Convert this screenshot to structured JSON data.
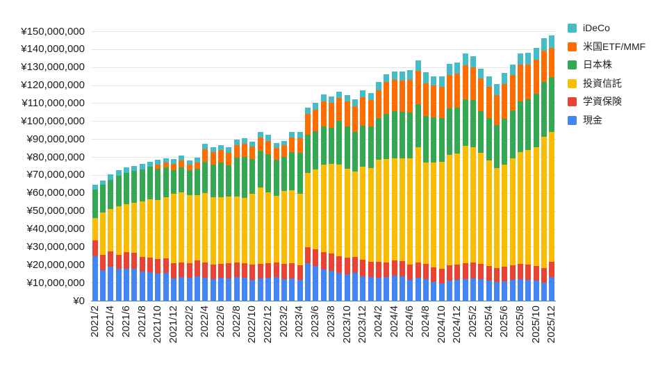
{
  "chart_data": {
    "type": "bar",
    "stacked": true,
    "title": "",
    "unit_note_millions_yen": 1000000,
    "ylim_millions": [
      0,
      150
    ],
    "grid": true,
    "y_ticks": [
      "¥0",
      "¥10,000,000",
      "¥20,000,000",
      "¥30,000,000",
      "¥40,000,000",
      "¥50,000,000",
      "¥60,000,000",
      "¥70,000,000",
      "¥80,000,000",
      "¥90,000,000",
      "¥100,000,000",
      "¥110,000,000",
      "¥120,000,000",
      "¥130,000,000",
      "¥140,000,000",
      "¥150,000,000"
    ],
    "x_tick_every": 2,
    "categories": [
      "2021/2",
      "2021/3",
      "2021/4",
      "2021/5",
      "2021/6",
      "2021/7",
      "2021/8",
      "2021/9",
      "2021/10",
      "2021/11",
      "2021/12",
      "2022/1",
      "2022/2",
      "2022/3",
      "2022/4",
      "2022/5",
      "2022/6",
      "2022/7",
      "2022/8",
      "2022/9",
      "2022/10",
      "2022/11",
      "2022/12",
      "2023/1",
      "2023/2",
      "2023/3",
      "2023/4",
      "2023/5",
      "2023/6",
      "2023/7",
      "2023/8",
      "2023/9",
      "2023/10",
      "2023/11",
      "2023/12",
      "2024/1",
      "2024/2",
      "2024/3",
      "2024/4",
      "2024/5",
      "2024/6",
      "2024/7",
      "2024/8",
      "2024/9",
      "2024/10",
      "2024/11",
      "2024/12",
      "2025/1",
      "2025/2",
      "2025/3",
      "2025/4",
      "2025/5",
      "2025/6",
      "2025/7",
      "2025/8",
      "2025/9",
      "2025/10",
      "2025/11",
      "2025/12"
    ],
    "series": [
      {
        "name": "現金",
        "color": "#4285F4",
        "values_millions": [
          24.8,
          17.2,
          19.2,
          17.9,
          17.9,
          18.1,
          16.6,
          16.2,
          15.3,
          15.5,
          12.7,
          13.2,
          13.0,
          13.6,
          13.0,
          12.2,
          13.0,
          12.7,
          13.2,
          13.0,
          11.9,
          12.7,
          13.0,
          13.2,
          12.3,
          12.7,
          11.9,
          21.0,
          19.7,
          17.5,
          16.8,
          15.5,
          14.9,
          15.8,
          13.6,
          13.2,
          13.0,
          13.5,
          14.2,
          13.9,
          11.9,
          13.0,
          12.3,
          10.7,
          9.8,
          11.4,
          11.9,
          12.3,
          12.7,
          12.3,
          11.4,
          10.7,
          11.0,
          11.9,
          12.3,
          11.9,
          11.4,
          10.4,
          13.2
        ]
      },
      {
        "name": "学資保険",
        "color": "#EA4335",
        "values_millions": [
          9.2,
          8.6,
          8.3,
          7.9,
          9.2,
          8.6,
          8.0,
          8.1,
          8.2,
          8.3,
          8.3,
          8.4,
          8.0,
          9.0,
          8.3,
          8.2,
          7.7,
          8.3,
          8.4,
          8.1,
          8.5,
          8.0,
          8.0,
          8.1,
          8.4,
          8.3,
          8.2,
          9.0,
          9.0,
          9.9,
          9.7,
          9.3,
          9.4,
          8.8,
          9.4,
          8.8,
          8.7,
          8.1,
          8.3,
          8.2,
          8.5,
          8.3,
          8.4,
          8.1,
          8.1,
          8.7,
          8.5,
          8.7,
          8.6,
          8.4,
          8.3,
          7.7,
          8.1,
          8.2,
          8.4,
          8.5,
          8.3,
          8.0,
          8.5
        ]
      },
      {
        "name": "投資信託",
        "color": "#FBBC04",
        "values_millions": [
          12.2,
          23.5,
          23.7,
          27.0,
          27.0,
          28.0,
          31.0,
          32.3,
          32.9,
          34.1,
          38.6,
          38.9,
          38.0,
          36.4,
          38.8,
          37.4,
          37.1,
          37.1,
          36.5,
          36.4,
          39.4,
          42.4,
          39.5,
          37.3,
          40.4,
          40.8,
          39.7,
          41.4,
          44.7,
          48.5,
          49.7,
          51.1,
          49.3,
          47.5,
          51.9,
          52.0,
          56.8,
          57.6,
          57.0,
          57.3,
          59.1,
          64.3,
          56.3,
          58.2,
          59.6,
          61.2,
          61.7,
          65.5,
          64.3,
          61.7,
          58.5,
          55.6,
          56.9,
          59.2,
          62.3,
          63.6,
          66.0,
          73.1,
          72.3
        ]
      },
      {
        "name": "日本株",
        "color": "#34A853",
        "values_millions": [
          16.0,
          15.3,
          16.4,
          17.0,
          17.3,
          17.6,
          17.8,
          18.3,
          17.2,
          16.7,
          13.1,
          14.1,
          13.7,
          14.6,
          17.4,
          18.3,
          19.3,
          17.5,
          21.6,
          22.9,
          19.4,
          20.6,
          21.2,
          19.9,
          19.0,
          21.2,
          22.6,
          21.3,
          21.2,
          21.3,
          20.3,
          24.5,
          23.6,
          22.1,
          22.7,
          23.2,
          23.4,
          25.0,
          26.3,
          26.1,
          25.4,
          24.1,
          26.2,
          25.3,
          24.4,
          25.8,
          25.4,
          25.7,
          26.4,
          23.4,
          23.5,
          24.1,
          25.5,
          26.7,
          28.0,
          28.5,
          29.8,
          30.5,
          30.5
        ]
      },
      {
        "name": "米国ETF/MMF",
        "color": "#FF6D01",
        "values_millions": [
          0,
          0,
          0,
          0,
          0,
          0,
          0,
          0,
          2.3,
          2.6,
          3.6,
          3.6,
          3.4,
          3.5,
          7.1,
          6.9,
          6.9,
          7.1,
          7.2,
          7.2,
          7.0,
          7.4,
          7.4,
          6.7,
          6.6,
          7.9,
          8.3,
          11.5,
          12.0,
          14.1,
          13.9,
          12.6,
          14.1,
          14.2,
          15.7,
          14.8,
          15.6,
          17.8,
          17.5,
          17.4,
          18.3,
          18.5,
          18.0,
          17.7,
          17.5,
          18.9,
          19.3,
          19.2,
          18.0,
          18.0,
          17.5,
          16.7,
          19.5,
          19.8,
          20.5,
          19.3,
          19.0,
          17.5,
          16.5
        ]
      },
      {
        "name": "iDeCo",
        "color": "#46BDC6",
        "values_millions": [
          2.5,
          2.6,
          2.8,
          2.9,
          3.0,
          2.9,
          2.9,
          2.8,
          2.6,
          2.3,
          2.6,
          2.9,
          2.3,
          2.6,
          2.8,
          2.6,
          2.9,
          2.9,
          2.8,
          3.1,
          2.6,
          3.1,
          3.4,
          2.6,
          2.4,
          3.3,
          3.5,
          3.5,
          3.8,
          3.9,
          3.5,
          3.5,
          3.5,
          3.8,
          4.1,
          3.8,
          4.5,
          4.4,
          4.4,
          4.8,
          5.5,
          5.8,
          6.0,
          5.1,
          5.7,
          5.9,
          6.0,
          6.3,
          6.2,
          5.7,
          6.0,
          6.0,
          6.0,
          5.9,
          6.5,
          6.4,
          6.5,
          6.9,
          7.0
        ]
      }
    ],
    "legend": {
      "position": "top-right",
      "items": [
        "iDeCo",
        "米国ETF/MMF",
        "日本株",
        "投資信託",
        "学資保険",
        "現金"
      ]
    }
  }
}
